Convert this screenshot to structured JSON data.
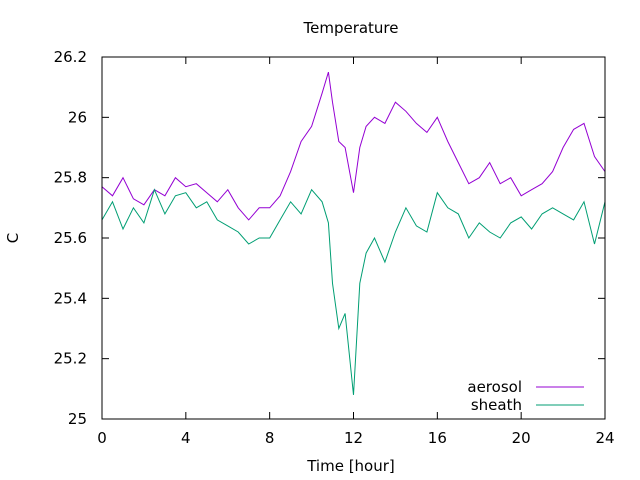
{
  "chart_data": {
    "type": "line",
    "title": "Temperature",
    "xlabel": "Time [hour]",
    "ylabel": "C",
    "xlim": [
      0,
      24
    ],
    "ylim": [
      25,
      26.2
    ],
    "xticks": [
      0,
      4,
      8,
      12,
      16,
      20,
      24
    ],
    "xtick_labels": [
      "0",
      "4",
      "8",
      "12",
      "16",
      "20",
      "24"
    ],
    "yticks": [
      25,
      25.2,
      25.4,
      25.6,
      25.8,
      26,
      26.2
    ],
    "ytick_labels": [
      "25",
      "25.2",
      "25.4",
      "25.6",
      "25.8",
      "26",
      "26.2"
    ],
    "grid": false,
    "legend_position": "bottom-right",
    "series": [
      {
        "name": "aerosol",
        "color": "#9400d3",
        "x": [
          0,
          0.5,
          1,
          1.5,
          2,
          2.5,
          3,
          3.5,
          4,
          4.5,
          5,
          5.5,
          6,
          6.5,
          7,
          7.5,
          8,
          8.5,
          9,
          9.5,
          10,
          10.5,
          10.8,
          11,
          11.3,
          11.6,
          12,
          12.3,
          12.6,
          13,
          13.5,
          14,
          14.5,
          15,
          15.5,
          16,
          16.5,
          17,
          17.5,
          18,
          18.5,
          19,
          19.5,
          20,
          20.5,
          21,
          21.5,
          22,
          22.5,
          23,
          23.5,
          24
        ],
        "y": [
          25.77,
          25.74,
          25.8,
          25.73,
          25.71,
          25.76,
          25.74,
          25.8,
          25.77,
          25.78,
          25.75,
          25.72,
          25.76,
          25.7,
          25.66,
          25.7,
          25.7,
          25.74,
          25.82,
          25.92,
          25.97,
          26.08,
          26.15,
          26.05,
          25.92,
          25.9,
          25.75,
          25.9,
          25.97,
          26.0,
          25.98,
          26.05,
          26.02,
          25.98,
          25.95,
          26.0,
          25.92,
          25.85,
          25.78,
          25.8,
          25.85,
          25.78,
          25.8,
          25.74,
          25.76,
          25.78,
          25.82,
          25.9,
          25.96,
          25.98,
          25.87,
          25.82
        ]
      },
      {
        "name": "sheath",
        "color": "#009e73",
        "x": [
          0,
          0.5,
          1,
          1.5,
          2,
          2.5,
          3,
          3.5,
          4,
          4.5,
          5,
          5.5,
          6,
          6.5,
          7,
          7.5,
          8,
          8.5,
          9,
          9.5,
          10,
          10.5,
          10.8,
          11,
          11.3,
          11.6,
          12,
          12.3,
          12.6,
          13,
          13.5,
          14,
          14.5,
          15,
          15.5,
          16,
          16.5,
          17,
          17.5,
          18,
          18.5,
          19,
          19.5,
          20,
          20.5,
          21,
          21.5,
          22,
          22.5,
          23,
          23.5,
          24
        ],
        "y": [
          25.66,
          25.72,
          25.63,
          25.7,
          25.65,
          25.76,
          25.68,
          25.74,
          25.75,
          25.7,
          25.72,
          25.66,
          25.64,
          25.62,
          25.58,
          25.6,
          25.6,
          25.66,
          25.72,
          25.68,
          25.76,
          25.72,
          25.65,
          25.45,
          25.3,
          25.35,
          25.08,
          25.45,
          25.55,
          25.6,
          25.52,
          25.62,
          25.7,
          25.64,
          25.62,
          25.75,
          25.7,
          25.68,
          25.6,
          25.65,
          25.62,
          25.6,
          25.65,
          25.67,
          25.63,
          25.68,
          25.7,
          25.68,
          25.66,
          25.72,
          25.58,
          25.72
        ]
      }
    ]
  }
}
